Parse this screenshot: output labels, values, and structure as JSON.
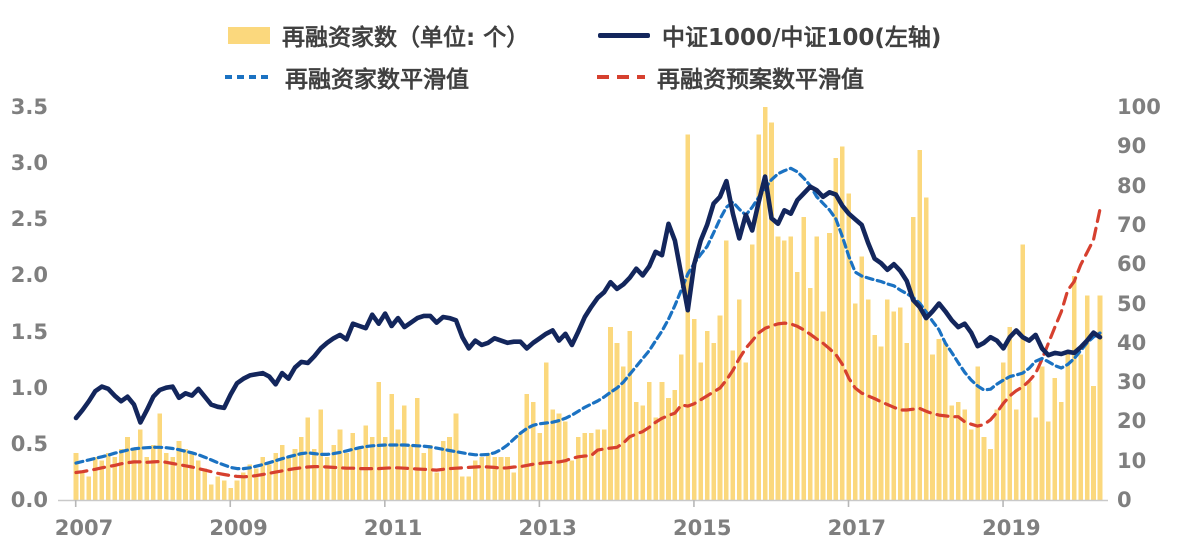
{
  "legend": {
    "bars_label": "再融资家数（单位: 个）",
    "ratio_label": "中证1000/中证100(左轴)",
    "bars_smooth_label": "再融资家数平滑值",
    "plans_smooth_label": "再融资预案数平滑值"
  },
  "colors": {
    "bar": "#FBD87D",
    "ratio_line": "#13265C",
    "bars_smooth_line": "#1B72C2",
    "plans_smooth_line": "#D6402F",
    "axis_text": "#7F7F7F",
    "axis_line": "#C9C9C9"
  },
  "chart_data": {
    "type": "composite",
    "subtype": "monthly bars + lines, dual axis",
    "x_start": "2007-01",
    "x_end": "2020-04",
    "x_tick_labels": [
      "2007",
      "2009",
      "2011",
      "2013",
      "2015",
      "2017",
      "2019"
    ],
    "left_axis_ticks": [
      "3.5",
      "3.0",
      "2.5",
      "2.0",
      "1.5",
      "1.0",
      "0.5",
      "0.0"
    ],
    "right_axis_ticks": [
      "100",
      "90",
      "80",
      "70",
      "60",
      "50",
      "40",
      "30",
      "20",
      "10",
      "0"
    ],
    "left_range": [
      0,
      3.5
    ],
    "right_range": [
      0,
      100
    ],
    "grid": "off",
    "legend_position": "top",
    "series": [
      {
        "id": "bars",
        "name": "再融资家数（单位: 个）",
        "type": "bar",
        "axis": "right",
        "values": [
          12,
          7,
          6,
          11,
          10,
          12,
          11,
          13,
          16,
          13,
          18,
          11,
          14,
          22,
          12,
          11,
          15,
          13,
          12,
          10,
          8,
          4,
          6,
          5,
          3,
          5,
          7,
          9,
          8,
          11,
          9,
          12,
          14,
          11,
          13,
          16,
          21,
          13,
          23,
          11,
          14,
          18,
          12,
          17,
          13,
          19,
          16,
          30,
          16,
          27,
          18,
          24,
          14,
          26,
          12,
          14,
          7,
          15,
          16,
          22,
          6,
          6,
          10,
          11,
          12,
          11,
          11,
          11,
          7,
          17,
          27,
          25,
          17,
          35,
          23,
          22,
          20,
          10,
          16,
          17,
          17,
          18,
          18,
          44,
          40,
          34,
          43,
          25,
          24,
          30,
          21,
          30,
          26,
          28,
          37,
          93,
          46,
          35,
          43,
          40,
          47,
          66,
          38,
          51,
          35,
          65,
          93,
          100,
          96,
          67,
          66,
          67,
          58,
          72,
          54,
          67,
          48,
          68,
          87,
          90,
          78,
          50,
          62,
          51,
          42,
          39,
          51,
          48,
          49,
          40,
          72,
          89,
          77,
          37,
          41,
          40,
          24,
          25,
          23,
          18,
          34,
          16,
          13,
          23,
          35,
          44,
          23,
          65,
          30,
          21,
          34,
          20,
          31,
          25,
          38,
          57,
          37,
          52,
          29,
          52
        ]
      },
      {
        "id": "ratio",
        "name": "中证1000/中证100(左轴)",
        "type": "line",
        "axis": "left",
        "values": [
          0.73,
          0.8,
          0.88,
          0.97,
          1.01,
          0.99,
          0.93,
          0.88,
          0.92,
          0.85,
          0.69,
          0.8,
          0.92,
          0.98,
          1.0,
          1.01,
          0.91,
          0.95,
          0.93,
          0.99,
          0.92,
          0.85,
          0.83,
          0.82,
          0.94,
          1.04,
          1.08,
          1.11,
          1.12,
          1.13,
          1.1,
          1.03,
          1.13,
          1.08,
          1.18,
          1.23,
          1.22,
          1.28,
          1.35,
          1.4,
          1.44,
          1.47,
          1.43,
          1.57,
          1.55,
          1.53,
          1.65,
          1.57,
          1.66,
          1.55,
          1.62,
          1.54,
          1.58,
          1.62,
          1.64,
          1.64,
          1.58,
          1.63,
          1.62,
          1.6,
          1.45,
          1.35,
          1.42,
          1.38,
          1.4,
          1.44,
          1.42,
          1.4,
          1.41,
          1.41,
          1.35,
          1.4,
          1.44,
          1.48,
          1.51,
          1.42,
          1.48,
          1.38,
          1.5,
          1.63,
          1.72,
          1.8,
          1.85,
          1.94,
          1.88,
          1.92,
          1.98,
          2.06,
          2.0,
          2.08,
          2.21,
          2.18,
          2.46,
          2.31,
          2.0,
          1.69,
          2.1,
          2.31,
          2.45,
          2.64,
          2.7,
          2.84,
          2.55,
          2.33,
          2.54,
          2.4,
          2.65,
          2.88,
          2.51,
          2.46,
          2.58,
          2.55,
          2.67,
          2.73,
          2.79,
          2.76,
          2.7,
          2.74,
          2.72,
          2.62,
          2.55,
          2.5,
          2.45,
          2.29,
          2.15,
          2.11,
          2.05,
          2.1,
          2.04,
          1.95,
          1.78,
          1.72,
          1.62,
          1.68,
          1.75,
          1.68,
          1.6,
          1.54,
          1.57,
          1.49,
          1.37,
          1.4,
          1.45,
          1.42,
          1.35,
          1.45,
          1.51,
          1.45,
          1.42,
          1.47,
          1.35,
          1.29,
          1.31,
          1.3,
          1.32,
          1.31,
          1.36,
          1.42,
          1.49,
          1.45
        ]
      },
      {
        "id": "bars_smooth",
        "name": "再融资家数平滑值",
        "type": "dashed-line",
        "axis": "right",
        "values": [
          9.4,
          9.8,
          10.2,
          10.6,
          11.0,
          11.4,
          11.9,
          12.3,
          12.7,
          13.0,
          13.2,
          13.3,
          13.4,
          13.4,
          13.3,
          13.1,
          12.8,
          12.4,
          12.0,
          11.5,
          10.9,
          10.2,
          9.5,
          8.9,
          8.3,
          8.0,
          8.0,
          8.2,
          8.6,
          9.0,
          9.5,
          10.0,
          10.5,
          11.0,
          11.4,
          11.8,
          12.0,
          11.8,
          11.6,
          11.6,
          11.8,
          12.1,
          12.5,
          12.9,
          13.3,
          13.6,
          13.8,
          13.9,
          14.0,
          14.0,
          14.0,
          14.0,
          13.9,
          13.8,
          13.7,
          13.5,
          13.2,
          12.9,
          12.6,
          12.3,
          12.0,
          11.7,
          11.5,
          11.5,
          11.6,
          12.0,
          12.8,
          14.0,
          15.5,
          17.0,
          18.2,
          19.0,
          19.4,
          19.6,
          19.8,
          20.2,
          20.8,
          21.6,
          22.6,
          23.6,
          24.4,
          25.2,
          26.2,
          27.4,
          28.5,
          30.0,
          32.0,
          34.0,
          36.0,
          38.0,
          40.5,
          43.0,
          46.0,
          49.5,
          53.5,
          57.5,
          60.2,
          62.5,
          64.5,
          68.0,
          71.5,
          74.5,
          75.8,
          74.0,
          72.5,
          74.5,
          77.0,
          79.3,
          81.5,
          83.0,
          83.8,
          84.4,
          83.5,
          81.9,
          80.0,
          77.2,
          75.5,
          73.8,
          71.5,
          67.0,
          62.0,
          58.0,
          57.0,
          56.5,
          56.0,
          55.6,
          55.0,
          54.5,
          53.4,
          52.5,
          51.5,
          50.1,
          47.9,
          45.5,
          43.3,
          39.9,
          37.5,
          34.9,
          32.5,
          30.5,
          29.0,
          28.0,
          28.2,
          29.5,
          30.5,
          31.4,
          31.8,
          32.3,
          33.5,
          35.3,
          36.0,
          35.2,
          34.2,
          33.6,
          34.5,
          36.0,
          38.0,
          40.0,
          41.5,
          42.5
        ]
      },
      {
        "id": "plans_smooth",
        "name": "再融资预案数平滑值",
        "type": "dashed-line",
        "axis": "right",
        "values": [
          7.0,
          7.2,
          7.5,
          7.8,
          8.2,
          8.5,
          8.8,
          9.2,
          9.5,
          9.7,
          9.7,
          9.6,
          9.7,
          9.8,
          9.6,
          9.3,
          9.0,
          8.7,
          8.4,
          8.0,
          7.6,
          7.2,
          6.8,
          6.5,
          6.2,
          6.0,
          5.9,
          6.0,
          6.2,
          6.5,
          6.8,
          7.1,
          7.4,
          7.7,
          8.0,
          8.2,
          8.4,
          8.5,
          8.5,
          8.4,
          8.3,
          8.2,
          8.1,
          8.1,
          8.0,
          8.0,
          8.0,
          8.0,
          8.1,
          8.2,
          8.2,
          8.1,
          8.0,
          7.9,
          7.8,
          7.7,
          7.6,
          7.8,
          8.0,
          8.1,
          8.2,
          8.3,
          8.4,
          8.5,
          8.4,
          8.3,
          8.1,
          8.2,
          8.4,
          8.5,
          8.8,
          9.1,
          9.3,
          9.5,
          9.6,
          9.7,
          10.0,
          10.6,
          11.0,
          11.2,
          11.3,
          12.7,
          13.0,
          13.2,
          13.4,
          14.5,
          16.1,
          16.8,
          17.4,
          18.5,
          19.8,
          20.8,
          21.5,
          22.1,
          24.2,
          23.9,
          24.5,
          25.5,
          26.5,
          27.5,
          28.5,
          30.5,
          33.0,
          36.0,
          38.6,
          40.5,
          42.5,
          43.7,
          44.3,
          44.8,
          45.0,
          44.8,
          44.2,
          43.3,
          42.2,
          41.0,
          39.9,
          38.5,
          37.0,
          34.5,
          31.0,
          28.5,
          27.2,
          26.5,
          25.8,
          25.0,
          24.3,
          23.6,
          22.9,
          22.9,
          23.1,
          23.3,
          22.6,
          22.0,
          21.6,
          21.4,
          21.2,
          21.2,
          19.9,
          19.3,
          18.8,
          19.2,
          20.4,
          22.3,
          24.6,
          26.5,
          27.8,
          28.8,
          30.3,
          32.2,
          35.8,
          39.9,
          44.0,
          47.9,
          53.4,
          55.6,
          59.8,
          63.0,
          66.2,
          74.0
        ]
      }
    ]
  }
}
